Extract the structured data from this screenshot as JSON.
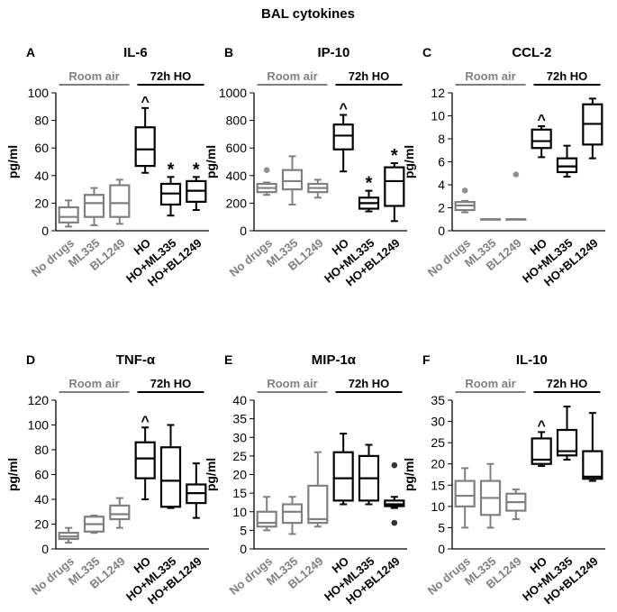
{
  "figure_title": "BAL cytokines",
  "colors": {
    "room_air": "#808080",
    "ho": "#000000",
    "outlier_gray": "#909090"
  },
  "chart_data": [
    {
      "panel": "A",
      "title": "IL-6",
      "type": "box",
      "ylabel": "pg/ml",
      "ylim": [
        0,
        100
      ],
      "yticks": [
        0,
        20,
        40,
        60,
        80,
        100
      ],
      "group_labels": [
        "Room air",
        "72h HO"
      ],
      "categories": [
        "No drugs",
        "ML335",
        "BL1249",
        "HO",
        "HO+ML335",
        "HO+BL1249"
      ],
      "boxes": [
        {
          "min": 3,
          "q1": 6,
          "median": 10,
          "q3": 17,
          "max": 22
        },
        {
          "min": 4,
          "q1": 10,
          "median": 20,
          "q3": 26,
          "max": 31
        },
        {
          "min": 5,
          "q1": 10,
          "median": 20,
          "q3": 33,
          "max": 37
        },
        {
          "min": 42,
          "q1": 47,
          "median": 59,
          "q3": 75,
          "max": 89
        },
        {
          "min": 11,
          "q1": 19,
          "median": 27,
          "q3": 34,
          "max": 39
        },
        {
          "min": 15,
          "q1": 21,
          "median": 29,
          "q3": 36,
          "max": 39
        }
      ],
      "outliers": [
        [],
        [],
        [],
        [],
        [],
        []
      ],
      "markers": [
        "",
        "",
        "",
        "^",
        "*",
        "*"
      ]
    },
    {
      "panel": "B",
      "title": "IP-10",
      "type": "box",
      "ylabel": "pg/ml",
      "ylim": [
        0,
        1000
      ],
      "yticks": [
        0,
        200,
        400,
        600,
        800,
        1000
      ],
      "group_labels": [
        "Room air",
        "72h HO"
      ],
      "categories": [
        "No drugs",
        "ML335",
        "BL1249",
        "HO",
        "HO+ML335",
        "HO+BL1249"
      ],
      "boxes": [
        {
          "min": 260,
          "q1": 280,
          "median": 310,
          "q3": 340,
          "max": 350
        },
        {
          "min": 190,
          "q1": 300,
          "median": 360,
          "q3": 440,
          "max": 540
        },
        {
          "min": 240,
          "q1": 280,
          "median": 310,
          "q3": 340,
          "max": 370
        },
        {
          "min": 430,
          "q1": 590,
          "median": 690,
          "q3": 770,
          "max": 840
        },
        {
          "min": 140,
          "q1": 160,
          "median": 200,
          "q3": 240,
          "max": 290
        },
        {
          "min": 70,
          "q1": 180,
          "median": 360,
          "q3": 460,
          "max": 490
        }
      ],
      "outliers": [
        [
          440
        ],
        [],
        [],
        [],
        [],
        []
      ],
      "markers": [
        "",
        "",
        "",
        "^",
        "*",
        "*"
      ]
    },
    {
      "panel": "C",
      "title": "CCL-2",
      "type": "box",
      "ylabel": "pg/ml",
      "ylim": [
        0,
        12
      ],
      "yticks": [
        0,
        2,
        4,
        6,
        8,
        10,
        12
      ],
      "group_labels": [
        "Room air",
        "72h HO"
      ],
      "categories": [
        "No drugs",
        "ML335",
        "BL1249",
        "HO",
        "HO+ML335",
        "HO+BL1249"
      ],
      "boxes": [
        {
          "min": 1.6,
          "q1": 1.8,
          "median": 2.2,
          "q3": 2.5,
          "max": 2.6
        },
        {
          "min": 1,
          "q1": 1,
          "median": 1,
          "q3": 1,
          "max": 1
        },
        {
          "min": 1,
          "q1": 1,
          "median": 1,
          "q3": 1,
          "max": 1
        },
        {
          "min": 6.4,
          "q1": 7.2,
          "median": 7.8,
          "q3": 8.8,
          "max": 9.1
        },
        {
          "min": 4.7,
          "q1": 5.1,
          "median": 5.6,
          "q3": 6.3,
          "max": 7.4
        },
        {
          "min": 6.3,
          "q1": 7.5,
          "median": 9.3,
          "q3": 11,
          "max": 11.5
        }
      ],
      "outliers": [
        [
          3.5
        ],
        [],
        [
          4.9
        ],
        [],
        [],
        []
      ],
      "markers": [
        "",
        "",
        "",
        "^",
        "",
        ""
      ]
    },
    {
      "panel": "D",
      "title": "TNF-α",
      "type": "box",
      "ylabel": "pg/ml",
      "ylim": [
        0,
        120
      ],
      "yticks": [
        0,
        20,
        40,
        60,
        80,
        100,
        120
      ],
      "group_labels": [
        "Room air",
        "72h HO"
      ],
      "categories": [
        "No drugs",
        "ML335",
        "BL1249",
        "HO",
        "HO+ML335",
        "HO+BL1249"
      ],
      "boxes": [
        {
          "min": 5,
          "q1": 8,
          "median": 10,
          "q3": 13,
          "max": 17
        },
        {
          "min": 13,
          "q1": 14,
          "median": 20,
          "q3": 26,
          "max": 27
        },
        {
          "min": 17,
          "q1": 24,
          "median": 28,
          "q3": 35,
          "max": 41
        },
        {
          "min": 40,
          "q1": 57,
          "median": 73,
          "q3": 86,
          "max": 98
        },
        {
          "min": 33,
          "q1": 34,
          "median": 55,
          "q3": 82,
          "max": 100
        },
        {
          "min": 25,
          "q1": 37,
          "median": 45,
          "q3": 52,
          "max": 69
        }
      ],
      "outliers": [
        [],
        [],
        [],
        [],
        [],
        []
      ],
      "markers": [
        "",
        "",
        "",
        "^",
        "",
        ""
      ]
    },
    {
      "panel": "E",
      "title": "MIP-1α",
      "type": "box",
      "ylabel": "pg/ml",
      "ylim": [
        0,
        40
      ],
      "yticks": [
        0,
        5,
        10,
        15,
        20,
        25,
        30,
        35,
        40
      ],
      "group_labels": [
        "Room air",
        "72h HO"
      ],
      "categories": [
        "No drugs",
        "ML335",
        "BL1249",
        "HO",
        "HO+ML335",
        "HO+BL1249"
      ],
      "boxes": [
        {
          "min": 5,
          "q1": 6,
          "median": 7,
          "q3": 10,
          "max": 14
        },
        {
          "min": 4,
          "q1": 7,
          "median": 10,
          "q3": 12,
          "max": 14
        },
        {
          "min": 6,
          "q1": 7,
          "median": 8,
          "q3": 17,
          "max": 26
        },
        {
          "min": 12,
          "q1": 13,
          "median": 19,
          "q3": 26,
          "max": 31
        },
        {
          "min": 12,
          "q1": 13,
          "median": 19,
          "q3": 25,
          "max": 28
        },
        {
          "min": 11,
          "q1": 11.5,
          "median": 12,
          "q3": 13,
          "max": 14
        }
      ],
      "outliers": [
        [],
        [],
        [],
        [],
        [],
        [
          22.5,
          7
        ]
      ],
      "markers": [
        "",
        "",
        "",
        "",
        "",
        ""
      ]
    },
    {
      "panel": "F",
      "title": "IL-10",
      "type": "box",
      "ylabel": "pg/ml",
      "ylim": [
        0,
        35
      ],
      "yticks": [
        0,
        5,
        10,
        15,
        20,
        25,
        30,
        35
      ],
      "group_labels": [
        "Room air",
        "72h HO"
      ],
      "categories": [
        "No drugs",
        "ML335",
        "BL1249",
        "HO",
        "HO+ML335",
        "HO+BL1249"
      ],
      "boxes": [
        {
          "min": 5,
          "q1": 10,
          "median": 12.5,
          "q3": 16,
          "max": 19
        },
        {
          "min": 5,
          "q1": 8,
          "median": 12,
          "q3": 16,
          "max": 20
        },
        {
          "min": 7,
          "q1": 9,
          "median": 11,
          "q3": 13,
          "max": 14
        },
        {
          "min": 19.5,
          "q1": 20,
          "median": 21,
          "q3": 26,
          "max": 27.5
        },
        {
          "min": 21,
          "q1": 22,
          "median": 23,
          "q3": 28,
          "max": 33.5
        },
        {
          "min": 16,
          "q1": 16.5,
          "median": 17,
          "q3": 23,
          "max": 32
        }
      ],
      "outliers": [
        [],
        [],
        [],
        [],
        [],
        []
      ],
      "markers": [
        "",
        "",
        "",
        "^",
        "",
        ""
      ]
    }
  ]
}
